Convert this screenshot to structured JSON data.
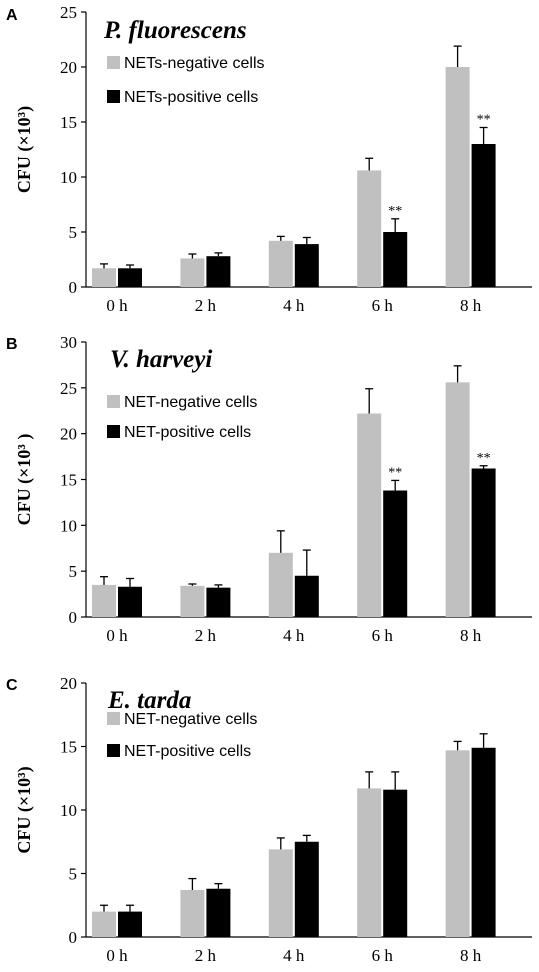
{
  "figure": {
    "panels": [
      {
        "letter": "A",
        "title": "P. fluorescens",
        "ylabel": "CFU (×10³)"
      },
      {
        "letter": "B",
        "title": "V. harveyi",
        "ylabel": "CFU (×10³ )"
      },
      {
        "letter": "C",
        "title": "E. tarda",
        "ylabel": "CFU (×10³)"
      }
    ]
  },
  "chart_data": [
    {
      "type": "bar",
      "title": "P. fluorescens",
      "ylabel": "CFU (×10³)",
      "xlabel": "",
      "ylim": [
        0,
        25
      ],
      "yticks": [
        0,
        5,
        10,
        15,
        20,
        25
      ],
      "categories": [
        "0 h",
        "2 h",
        "4 h",
        "6 h",
        "8 h"
      ],
      "series": [
        {
          "name": "NETs-negative cells",
          "color": "#c0c0c0",
          "values": [
            1.7,
            2.6,
            4.2,
            10.6,
            20.0
          ],
          "errors": [
            0.4,
            0.4,
            0.4,
            1.1,
            1.9
          ]
        },
        {
          "name": "NETs-positive cells",
          "color": "#000000",
          "values": [
            1.7,
            2.8,
            3.9,
            5.0,
            13.0
          ],
          "errors": [
            0.3,
            0.3,
            0.6,
            1.2,
            1.5
          ]
        }
      ],
      "annotations": [
        {
          "category": "6 h",
          "series": "NETs-positive cells",
          "text": "**"
        },
        {
          "category": "8 h",
          "series": "NETs-positive cells",
          "text": "**"
        }
      ],
      "legend": "top-left"
    },
    {
      "type": "bar",
      "title": "V. harveyi",
      "ylabel": "CFU (×10³ )",
      "xlabel": "",
      "ylim": [
        0,
        30
      ],
      "yticks": [
        0,
        5,
        10,
        15,
        20,
        25,
        30
      ],
      "categories": [
        "0 h",
        "2 h",
        "4 h",
        "6 h",
        "8 h"
      ],
      "series": [
        {
          "name": "NET-negative cells",
          "color": "#c0c0c0",
          "values": [
            3.5,
            3.4,
            7.0,
            22.2,
            25.6
          ],
          "errors": [
            0.9,
            0.2,
            2.4,
            2.7,
            1.8
          ]
        },
        {
          "name": "NET-positive cells",
          "color": "#000000",
          "values": [
            3.3,
            3.2,
            4.5,
            13.8,
            16.2
          ],
          "errors": [
            0.9,
            0.3,
            2.8,
            1.1,
            0.3
          ]
        }
      ],
      "annotations": [
        {
          "category": "6 h",
          "series": "NET-positive cells",
          "text": "**"
        },
        {
          "category": "8 h",
          "series": "NET-positive cells",
          "text": "**"
        }
      ],
      "legend": "top-left"
    },
    {
      "type": "bar",
      "title": "E. tarda",
      "ylabel": "CFU (×10³)",
      "xlabel": "",
      "ylim": [
        0,
        20
      ],
      "yticks": [
        0,
        5,
        10,
        15,
        20
      ],
      "categories": [
        "0 h",
        "2 h",
        "4 h",
        "6 h",
        "8 h"
      ],
      "series": [
        {
          "name": "NET-negative cells",
          "color": "#c0c0c0",
          "values": [
            2.0,
            3.7,
            6.9,
            11.7,
            14.7
          ],
          "errors": [
            0.5,
            0.9,
            0.9,
            1.3,
            0.7
          ]
        },
        {
          "name": "NET-positive cells",
          "color": "#000000",
          "values": [
            2.0,
            3.8,
            7.5,
            11.6,
            14.9
          ],
          "errors": [
            0.5,
            0.4,
            0.5,
            1.4,
            1.1
          ]
        }
      ],
      "annotations": [],
      "legend": "top-left"
    }
  ]
}
